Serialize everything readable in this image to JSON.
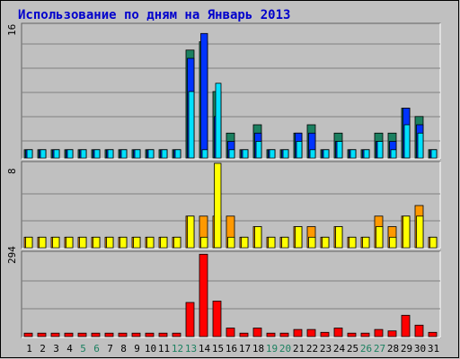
{
  "chart_data": {
    "type": "bar",
    "title": "Использование по дням на Январь 2013",
    "categories": [
      "1",
      "2",
      "3",
      "4",
      "5",
      "6",
      "7",
      "8",
      "9",
      "10",
      "11",
      "12",
      "13",
      "14",
      "15",
      "16",
      "17",
      "18",
      "19",
      "20",
      "21",
      "22",
      "23",
      "24",
      "25",
      "26",
      "27",
      "28",
      "29",
      "30",
      "31"
    ],
    "weekend_categories": [
      "5",
      "6",
      "12",
      "13",
      "19",
      "20",
      "26",
      "27"
    ],
    "panels": [
      {
        "ymax_label": "16",
        "ylim": [
          0,
          16
        ],
        "series": [
          {
            "color": "#1b8060",
            "values": [
              1,
              1,
              1,
              1,
              1,
              1,
              1,
              1,
              1,
              1,
              1,
              1,
              13,
              14,
              8,
              3,
              1,
              4,
              1,
              1,
              3,
              4,
              1,
              3,
              1,
              1,
              3,
              3,
              6,
              5,
              1
            ]
          },
          {
            "color": "#0033ff",
            "values": [
              1,
              1,
              1,
              1,
              1,
              1,
              1,
              1,
              1,
              1,
              1,
              1,
              12,
              15,
              5,
              2,
              1,
              3,
              1,
              1,
              3,
              3,
              1,
              2,
              1,
              1,
              2,
              2,
              6,
              4,
              1
            ]
          },
          {
            "color": "#00e0ff",
            "values": [
              1,
              1,
              1,
              1,
              1,
              1,
              1,
              1,
              1,
              1,
              1,
              1,
              8,
              1,
              9,
              1,
              1,
              2,
              1,
              1,
              2,
              1,
              1,
              2,
              1,
              1,
              2,
              1,
              4,
              3,
              1
            ]
          }
        ]
      },
      {
        "ymax_label": "8",
        "ylim": [
          0,
          8
        ],
        "series": [
          {
            "color": "#ff9900",
            "values": [
              1,
              1,
              1,
              1,
              1,
              1,
              1,
              1,
              1,
              1,
              1,
              1,
              3,
              3,
              3,
              3,
              1,
              2,
              1,
              1,
              2,
              2,
              1,
              2,
              1,
              1,
              3,
              2,
              3,
              4,
              1
            ]
          },
          {
            "color": "#ffff00",
            "values": [
              1,
              1,
              1,
              1,
              1,
              1,
              1,
              1,
              1,
              1,
              1,
              1,
              3,
              1,
              8,
              1,
              1,
              2,
              1,
              1,
              2,
              1,
              1,
              2,
              1,
              1,
              2,
              1,
              3,
              3,
              1
            ]
          }
        ]
      },
      {
        "ymax_label": "294",
        "ylim": [
          0,
          294
        ],
        "series": [
          {
            "color": "#ff0000",
            "values": [
              12,
              12,
              12,
              12,
              12,
              12,
              12,
              12,
              12,
              12,
              12,
              12,
              120,
              290,
              125,
              30,
              12,
              30,
              12,
              12,
              25,
              25,
              15,
              30,
              12,
              12,
              25,
              20,
              75,
              40,
              15
            ]
          }
        ]
      }
    ]
  }
}
